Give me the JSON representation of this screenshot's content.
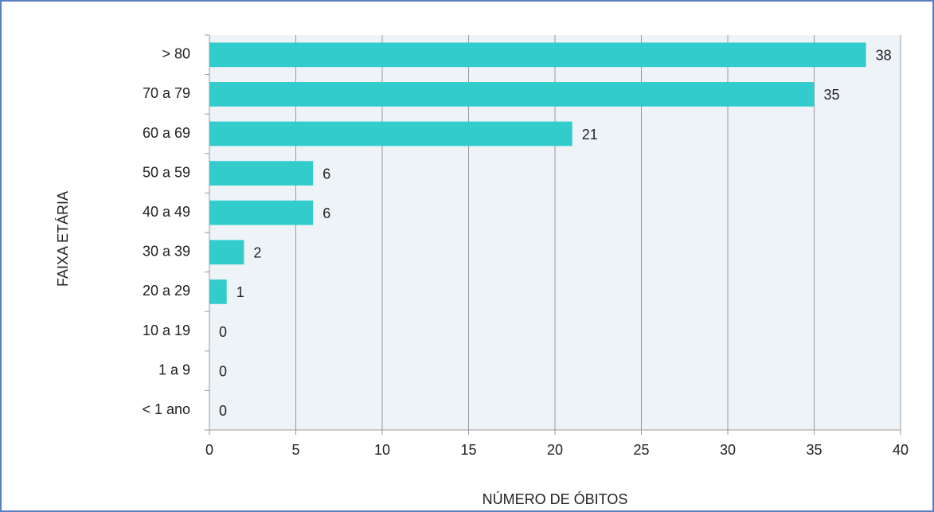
{
  "chart_data": {
    "type": "bar",
    "orientation": "horizontal",
    "categories": [
      "> 80",
      "70 a 79",
      "60 a 69",
      "50 a 59",
      "40 a 49",
      "30 a 39",
      "20 a 29",
      "10 a 19",
      "1 a 9",
      "< 1 ano"
    ],
    "values": [
      38,
      35,
      21,
      6,
      6,
      2,
      1,
      0,
      0,
      0
    ],
    "color": "#33cccc",
    "xlim": [
      0,
      40
    ],
    "xticks": [
      0,
      5,
      10,
      15,
      20,
      25,
      30,
      35,
      40
    ],
    "grid": true,
    "xlabel": "NÚMERO DE ÓBITOS",
    "ylabel": "FAIXA ETÁRIA"
  }
}
